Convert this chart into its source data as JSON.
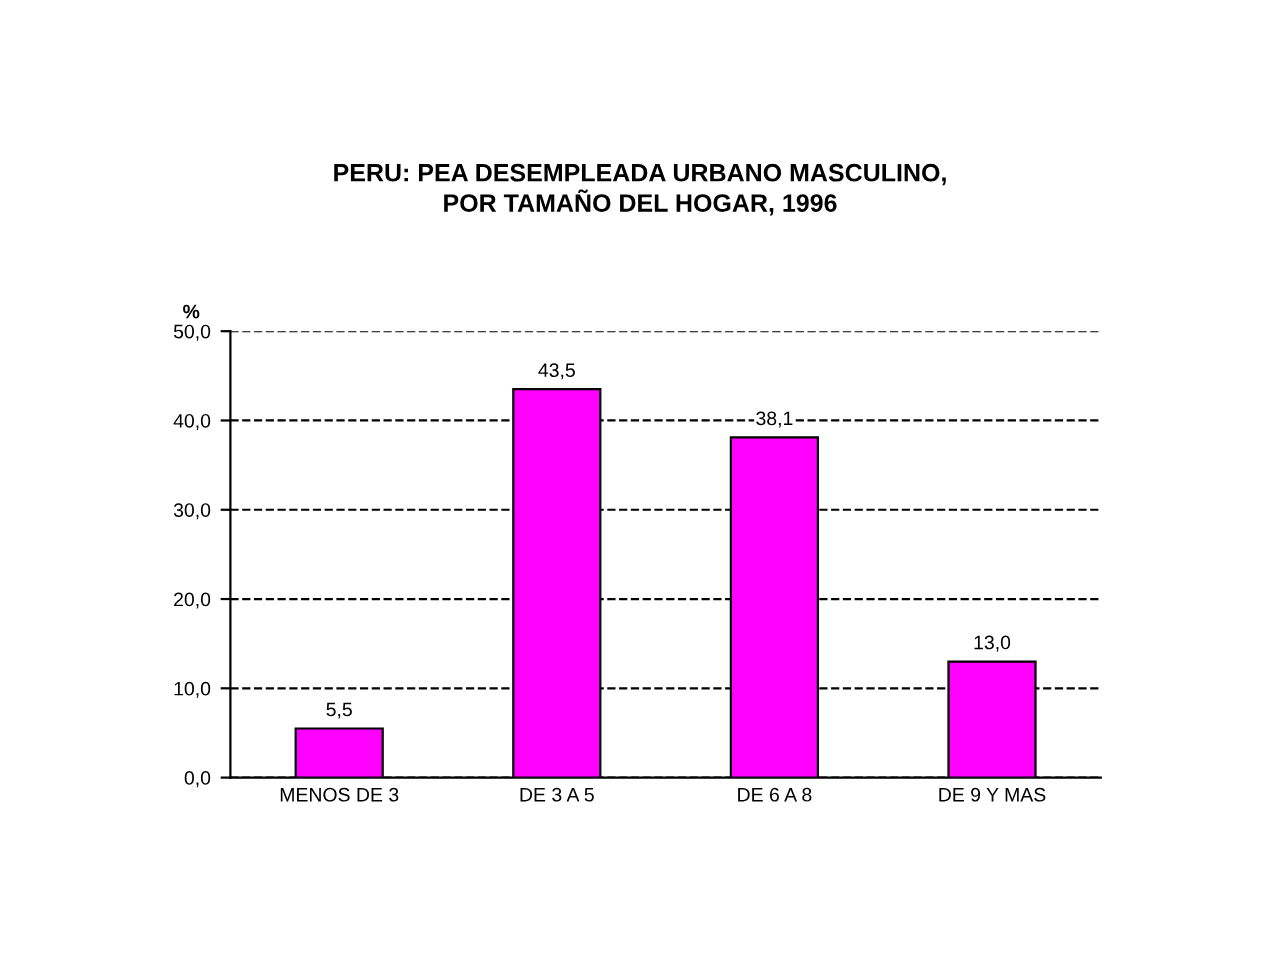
{
  "chart_data": {
    "type": "bar",
    "title": "PERU: PEA DESEMPLEADA URBANO MASCULINO,\nPOR TAMAÑO DEL HOGAR, 1996",
    "ylabel": "%",
    "categories": [
      "MENOS DE 3",
      "DE 3 A 5",
      "DE 6 A 8",
      "DE 9 Y MAS"
    ],
    "values": [
      5.5,
      43.5,
      38.1,
      13.0
    ],
    "color": "#ff00ff",
    "value_labels": [
      "5,5",
      "43,5",
      "38,1",
      "13,0"
    ],
    "ylim": [
      0,
      50
    ],
    "yticks": [
      {
        "value": 0,
        "label": "0,0"
      },
      {
        "value": 10,
        "label": "10,0"
      },
      {
        "value": 20,
        "label": "20,0"
      },
      {
        "value": 30,
        "label": "30,0"
      },
      {
        "value": 40,
        "label": "40,0"
      },
      {
        "value": 50,
        "label": "50,0"
      }
    ],
    "grid": "y",
    "line_style": "dashed",
    "legend": false
  }
}
